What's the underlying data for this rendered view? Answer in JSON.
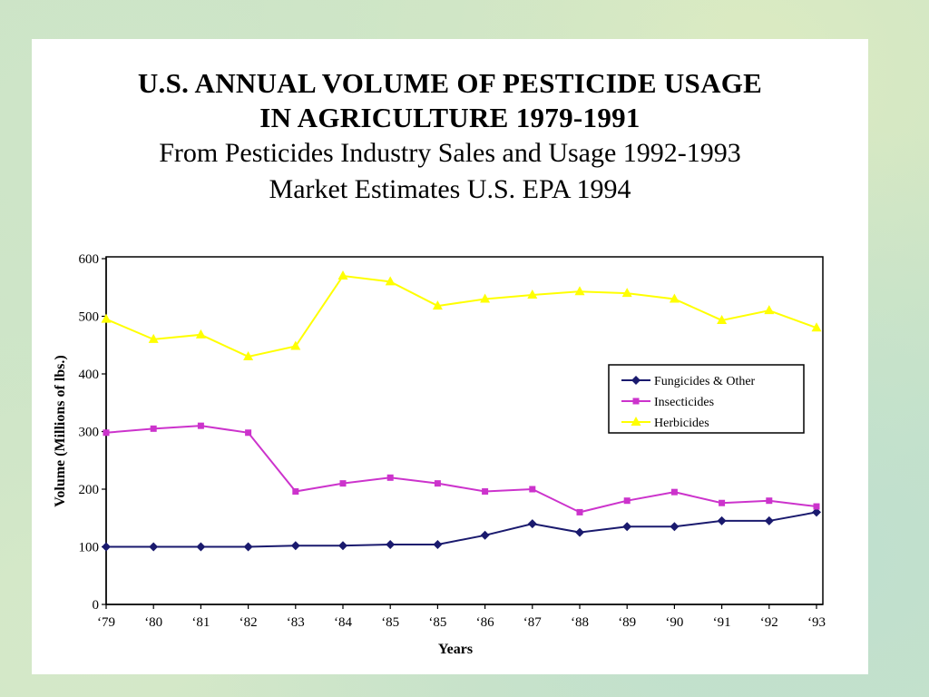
{
  "title": {
    "line1": "U.S. ANNUAL VOLUME OF PESTICIDE USAGE",
    "line2": "IN AGRICULTURE  1979-1991",
    "line3": "From Pesticides Industry Sales and Usage 1992-1993",
    "line4": "Market Estimates U.S. EPA 1994"
  },
  "chart_data": {
    "type": "line",
    "title": "U.S. ANNUAL VOLUME OF PESTICIDE USAGE IN AGRICULTURE  1979-1991",
    "subtitle": "From Pesticides Industry Sales and Usage 1992-1993 Market Estimates U.S. EPA 1994",
    "xlabel": "Years",
    "ylabel": "Volume (Millions of lbs.)",
    "categories": [
      "‘79",
      "‘80",
      "‘81",
      "‘82",
      "‘83",
      "‘84",
      "‘85",
      "‘85",
      "‘86",
      "‘87",
      "‘88",
      "‘89",
      "‘90",
      "‘91",
      "‘92",
      "‘93"
    ],
    "ylim": [
      0,
      600
    ],
    "yticks": [
      0,
      100,
      200,
      300,
      400,
      500,
      600
    ],
    "grid": false,
    "legend_position": "right-middle",
    "series": [
      {
        "name": "Fungicides & Other",
        "color": "#1a1a6e",
        "marker": "diamond",
        "values": [
          100,
          100,
          100,
          100,
          102,
          102,
          104,
          104,
          120,
          140,
          125,
          135,
          135,
          145,
          145,
          160
        ]
      },
      {
        "name": "Insecticides",
        "color": "#cc33cc",
        "marker": "square",
        "values": [
          298,
          305,
          310,
          298,
          196,
          210,
          220,
          210,
          196,
          200,
          160,
          180,
          195,
          176,
          180,
          170
        ]
      },
      {
        "name": "Herbicides",
        "color": "#ffff00",
        "marker": "triangle",
        "values": [
          495,
          460,
          468,
          430,
          448,
          570,
          560,
          518,
          530,
          537,
          543,
          540,
          530,
          493,
          510,
          480
        ]
      }
    ]
  }
}
